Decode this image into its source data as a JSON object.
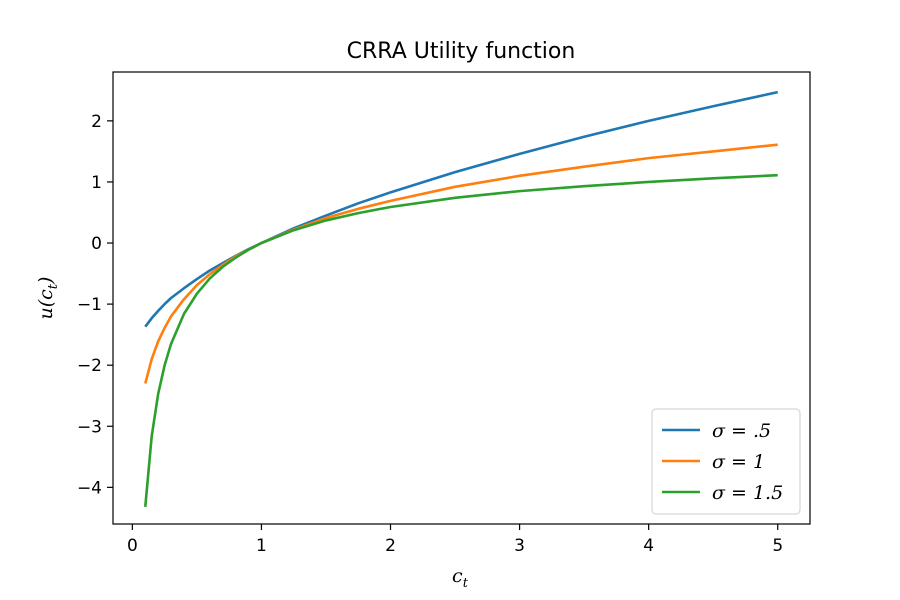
{
  "chart_data": {
    "type": "line",
    "title": "CRRA Utility function",
    "xlabel": "c",
    "xlabel_sub": "t",
    "ylabel": "u(c",
    "ylabel_sub": "t",
    "ylabel_close": ")",
    "xlim": [
      -0.15,
      5.25
    ],
    "ylim": [
      -4.6,
      2.8
    ],
    "xticks": [
      0,
      1,
      2,
      3,
      4,
      5
    ],
    "xtick_labels": [
      "0",
      "1",
      "2",
      "3",
      "4",
      "5"
    ],
    "yticks": [
      -4,
      -3,
      -2,
      -1,
      0,
      1,
      2
    ],
    "ytick_labels": [
      "−4",
      "−3",
      "−2",
      "−1",
      "0",
      "1",
      "2"
    ],
    "grid": false,
    "legend_position": "lower-right",
    "x": [
      0.1,
      0.15,
      0.2,
      0.25,
      0.3,
      0.4,
      0.5,
      0.6,
      0.7,
      0.8,
      0.9,
      1.0,
      1.25,
      1.5,
      1.75,
      2.0,
      2.5,
      3.0,
      3.5,
      4.0,
      4.5,
      5.0
    ],
    "series": [
      {
        "name": "σ = .5",
        "color": "#1f77b4",
        "values": [
          -1.37,
          -1.23,
          -1.11,
          -1.0,
          -0.9,
          -0.74,
          -0.59,
          -0.45,
          -0.33,
          -0.21,
          -0.1,
          0.0,
          0.24,
          0.45,
          0.65,
          0.83,
          1.16,
          1.46,
          1.74,
          2.0,
          2.24,
          2.47
        ]
      },
      {
        "name": "σ = 1",
        "color": "#ff7f0e",
        "values": [
          -2.3,
          -1.9,
          -1.61,
          -1.39,
          -1.2,
          -0.92,
          -0.69,
          -0.51,
          -0.36,
          -0.22,
          -0.11,
          0.0,
          0.22,
          0.41,
          0.56,
          0.69,
          0.92,
          1.1,
          1.25,
          1.39,
          1.5,
          1.61
        ]
      },
      {
        "name": "σ = 1.5",
        "color": "#2ca02c",
        "values": [
          -4.32,
          -3.16,
          -2.47,
          -2.0,
          -1.65,
          -1.16,
          -0.83,
          -0.58,
          -0.39,
          -0.24,
          -0.11,
          0.0,
          0.21,
          0.37,
          0.49,
          0.59,
          0.74,
          0.85,
          0.93,
          1.0,
          1.06,
          1.11
        ]
      }
    ]
  }
}
